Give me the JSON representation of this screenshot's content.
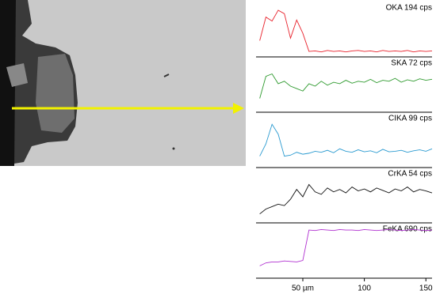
{
  "chart_data": [
    {
      "type": "line",
      "title": "OKA 194 cps",
      "color": "#e8202a",
      "xlim": [
        12,
        155
      ],
      "ylim": [
        0,
        100
      ],
      "x": [
        15,
        20,
        25,
        30,
        35,
        40,
        45,
        50,
        55,
        60,
        65,
        70,
        75,
        80,
        85,
        90,
        95,
        100,
        105,
        110,
        115,
        120,
        125,
        130,
        135,
        140,
        145,
        150,
        155
      ],
      "values": [
        30,
        78,
        70,
        92,
        85,
        35,
        72,
        45,
        8,
        9,
        7,
        10,
        8,
        9,
        7,
        9,
        10,
        8,
        9,
        7,
        10,
        8,
        9,
        8,
        10,
        7,
        9,
        8,
        9
      ]
    },
    {
      "type": "line",
      "title": "SKA 72 cps",
      "color": "#2e9a2e",
      "xlim": [
        12,
        155
      ],
      "ylim": [
        0,
        100
      ],
      "x": [
        15,
        20,
        25,
        30,
        35,
        40,
        45,
        50,
        55,
        60,
        65,
        70,
        75,
        80,
        85,
        90,
        95,
        100,
        105,
        110,
        115,
        120,
        125,
        130,
        135,
        140,
        145,
        150,
        155
      ],
      "values": [
        25,
        70,
        75,
        55,
        60,
        50,
        45,
        40,
        55,
        50,
        60,
        52,
        58,
        55,
        62,
        56,
        60,
        58,
        64,
        57,
        62,
        60,
        66,
        58,
        63,
        60,
        65,
        62,
        64
      ]
    },
    {
      "type": "line",
      "title": "CIKA 99 cps",
      "color": "#2a9ad0",
      "xlim": [
        12,
        155
      ],
      "ylim": [
        0,
        100
      ],
      "x": [
        15,
        20,
        25,
        30,
        35,
        40,
        45,
        50,
        55,
        60,
        65,
        70,
        75,
        80,
        85,
        90,
        95,
        100,
        105,
        110,
        115,
        120,
        125,
        130,
        135,
        140,
        145,
        150,
        155
      ],
      "values": [
        20,
        45,
        85,
        65,
        20,
        22,
        28,
        24,
        26,
        30,
        28,
        32,
        27,
        35,
        30,
        28,
        33,
        29,
        31,
        27,
        34,
        29,
        30,
        32,
        28,
        31,
        33,
        30,
        35
      ]
    },
    {
      "type": "line",
      "title": "CrKA 54 cps",
      "color": "#111111",
      "xlim": [
        12,
        155
      ],
      "ylim": [
        0,
        100
      ],
      "x": [
        15,
        20,
        25,
        30,
        35,
        40,
        45,
        50,
        55,
        60,
        65,
        70,
        75,
        80,
        85,
        90,
        95,
        100,
        105,
        110,
        115,
        120,
        125,
        130,
        135,
        140,
        145,
        150,
        155
      ],
      "values": [
        15,
        25,
        30,
        35,
        32,
        45,
        65,
        50,
        75,
        60,
        55,
        68,
        60,
        65,
        58,
        70,
        62,
        66,
        60,
        68,
        63,
        58,
        66,
        62,
        70,
        60,
        65,
        62,
        58
      ]
    },
    {
      "type": "line",
      "title": "FeKA 690 cps",
      "color": "#b030d0",
      "xlim": [
        12,
        155
      ],
      "ylim": [
        0,
        100
      ],
      "x": [
        15,
        20,
        25,
        30,
        35,
        40,
        45,
        50,
        55,
        60,
        65,
        70,
        75,
        80,
        85,
        90,
        95,
        100,
        105,
        110,
        115,
        120,
        125,
        130,
        135,
        140,
        145,
        150,
        155
      ],
      "values": [
        22,
        28,
        30,
        30,
        32,
        31,
        30,
        33,
        95,
        94,
        96,
        95,
        94,
        96,
        95,
        95,
        94,
        96,
        95,
        94,
        95,
        96,
        95,
        94,
        95,
        96,
        95,
        94,
        95
      ],
      "xticks": [
        {
          "value": 50,
          "label": "50 µm"
        },
        100,
        150
      ]
    }
  ]
}
